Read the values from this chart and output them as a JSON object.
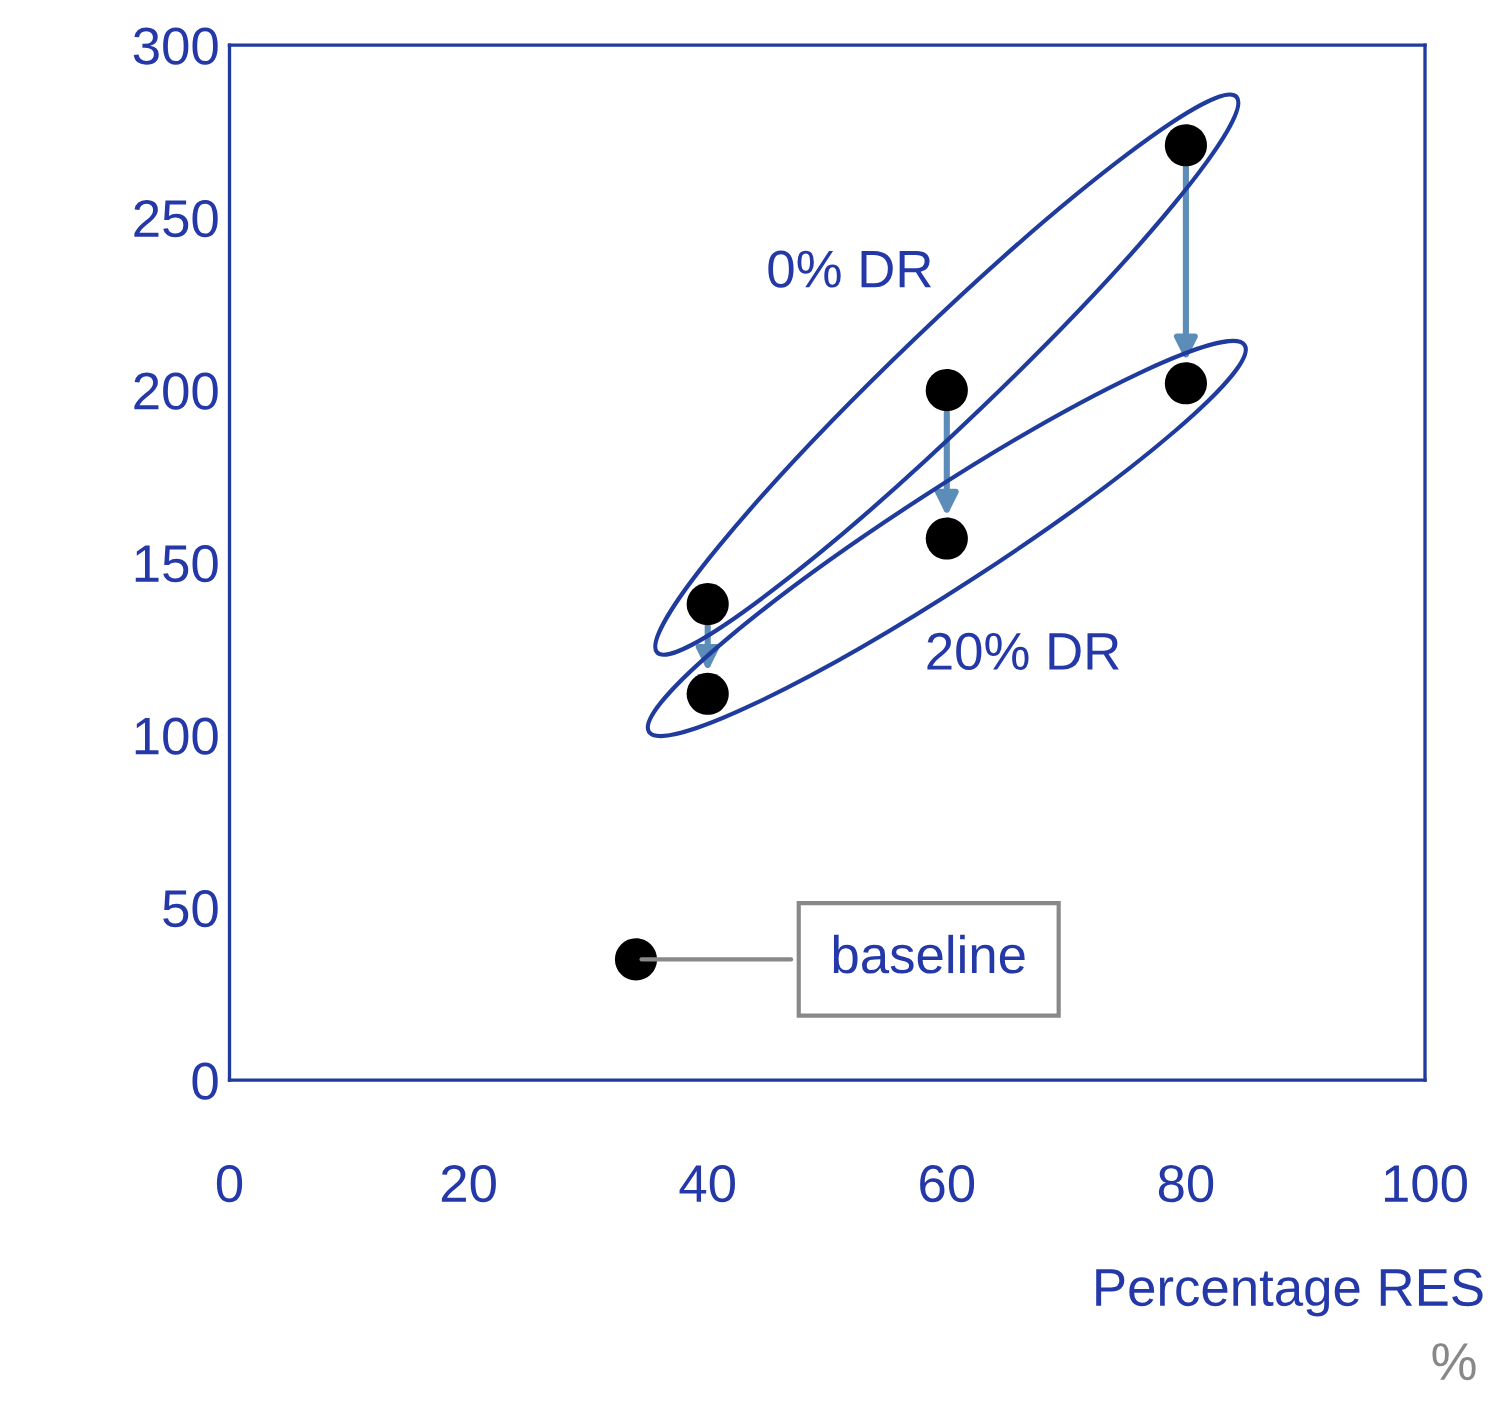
{
  "chart_data": {
    "type": "scatter",
    "xlabel": "Percentage RES",
    "xlim": [
      0,
      100
    ],
    "xticks": [
      0,
      20,
      40,
      60,
      80,
      100
    ],
    "ylim": [
      0,
      300
    ],
    "yticks": [
      0,
      50,
      100,
      150,
      200,
      250,
      300
    ],
    "grid": false,
    "legend": false,
    "marker": "circle",
    "series": [
      {
        "name": "0% DR",
        "color": "#000000",
        "x": [
          40,
          60,
          80
        ],
        "values": [
          138,
          200,
          271
        ]
      },
      {
        "name": "20% DR",
        "color": "#000000",
        "x": [
          40,
          60,
          80
        ],
        "values": [
          112,
          157,
          202
        ]
      },
      {
        "color": "#000000",
        "x": [
          34
        ],
        "values": [
          35
        ]
      }
    ],
    "annotations": [
      {
        "text": "baseline",
        "x": 34,
        "y": 35
      },
      "%"
    ]
  }
}
